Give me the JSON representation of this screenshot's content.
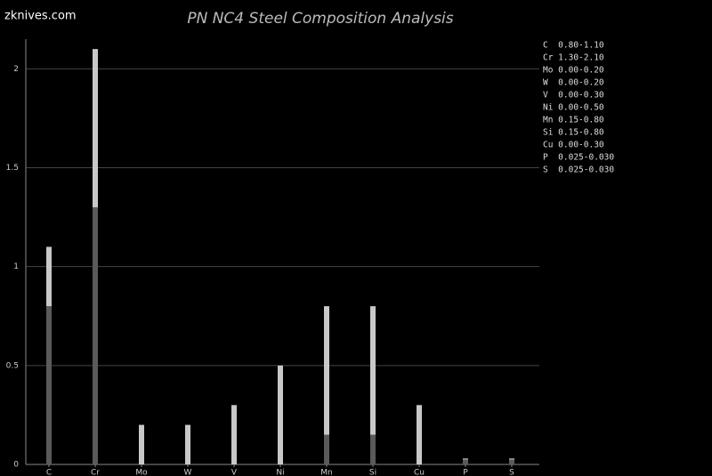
{
  "chart_data": {
    "type": "range-bar",
    "title": "PN NC4 Steel Composition Analysis",
    "watermark": "zknives.com",
    "categories": [
      "C",
      "Cr",
      "Mo",
      "W",
      "V",
      "Ni",
      "Mn",
      "Si",
      "Cu",
      "P",
      "S"
    ],
    "min": [
      0.8,
      1.3,
      0,
      0,
      0,
      0,
      0.15,
      0.15,
      0,
      0.025,
      0.025
    ],
    "max": [
      1.1,
      2.1,
      0.2,
      0.2,
      0.3,
      0.5,
      0.8,
      0.8,
      0.3,
      0.03,
      0.03
    ],
    "min_color": "#5a5a5a",
    "range_color": "#c8c8c8",
    "ylim": [
      0,
      2.15
    ],
    "yticks": [
      0,
      0.5,
      1,
      1.5,
      2
    ],
    "grid": true,
    "annotations": [
      "C  0.80-1.10",
      "Cr 1.30-2.10",
      "Mo 0.00-0.20",
      "W  0.00-0.20",
      "V  0.00-0.30",
      "Ni 0.00-0.50",
      "Mn 0.15-0.80",
      "Si 0.15-0.80",
      "Cu 0.00-0.30",
      "P  0.025-0.030",
      "S  0.025-0.030"
    ]
  }
}
